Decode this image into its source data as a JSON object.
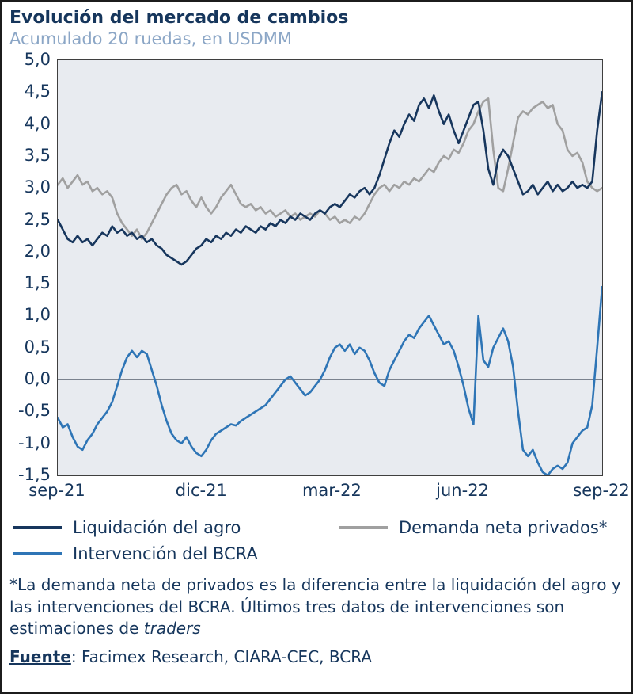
{
  "chart_data": {
    "type": "line",
    "title": "Evolución del mercado de cambios",
    "subtitle": "Acumulado 20 ruedas, en USDMM",
    "ylim": [
      -1.5,
      5.0
    ],
    "grid": false,
    "zero_line": true,
    "legend_position": "bottom",
    "plot_bg": "#e8ebf0",
    "y_ticks": [
      {
        "value": 5.0,
        "label": "5,0"
      },
      {
        "value": 4.5,
        "label": "4,5"
      },
      {
        "value": 4.0,
        "label": "4,0"
      },
      {
        "value": 3.5,
        "label": "3,5"
      },
      {
        "value": 3.0,
        "label": "3,0"
      },
      {
        "value": 2.5,
        "label": "2,5"
      },
      {
        "value": 2.0,
        "label": "2,0"
      },
      {
        "value": 1.5,
        "label": "1,5"
      },
      {
        "value": 1.0,
        "label": "1,0"
      },
      {
        "value": 0.5,
        "label": "0,5"
      },
      {
        "value": 0.0,
        "label": "0,0"
      },
      {
        "value": -0.5,
        "label": "-0,5"
      },
      {
        "value": -1.0,
        "label": "-1,0"
      },
      {
        "value": -1.5,
        "label": "-1,5"
      }
    ],
    "x_ticks": [
      {
        "label": "sep-21",
        "pos": 0.0
      },
      {
        "label": "dic-21",
        "pos": 0.265
      },
      {
        "label": "mar-22",
        "pos": 0.505
      },
      {
        "label": "jun-22",
        "pos": 0.745
      },
      {
        "label": "sep-22",
        "pos": 1.0
      }
    ],
    "series": [
      {
        "name": "Liquidación del agro",
        "color": "#17365d",
        "values": [
          2.5,
          2.35,
          2.2,
          2.15,
          2.25,
          2.15,
          2.2,
          2.1,
          2.2,
          2.3,
          2.25,
          2.4,
          2.3,
          2.35,
          2.25,
          2.3,
          2.2,
          2.25,
          2.15,
          2.2,
          2.1,
          2.05,
          1.95,
          1.9,
          1.85,
          1.8,
          1.85,
          1.95,
          2.05,
          2.1,
          2.2,
          2.15,
          2.25,
          2.2,
          2.3,
          2.25,
          2.35,
          2.3,
          2.4,
          2.35,
          2.3,
          2.4,
          2.35,
          2.45,
          2.4,
          2.5,
          2.45,
          2.55,
          2.5,
          2.6,
          2.55,
          2.5,
          2.6,
          2.65,
          2.6,
          2.7,
          2.75,
          2.7,
          2.8,
          2.9,
          2.85,
          2.95,
          3.0,
          2.9,
          3.0,
          3.2,
          3.45,
          3.7,
          3.9,
          3.8,
          4.0,
          4.15,
          4.05,
          4.3,
          4.4,
          4.25,
          4.45,
          4.2,
          4.0,
          4.15,
          3.9,
          3.7,
          3.9,
          4.1,
          4.3,
          4.35,
          3.9,
          3.3,
          3.05,
          3.45,
          3.6,
          3.5,
          3.3,
          3.1,
          2.9,
          2.95,
          3.05,
          2.9,
          3.0,
          3.1,
          2.95,
          3.05,
          2.95,
          3.0,
          3.1,
          3.0,
          3.05,
          3.0,
          3.1,
          3.9,
          4.5
        ]
      },
      {
        "name": "Demanda neta privados*",
        "color": "#a0a0a0",
        "values": [
          3.05,
          3.15,
          3.0,
          3.1,
          3.2,
          3.05,
          3.1,
          2.95,
          3.0,
          2.9,
          2.95,
          2.85,
          2.6,
          2.45,
          2.35,
          2.25,
          2.35,
          2.2,
          2.3,
          2.45,
          2.6,
          2.75,
          2.9,
          3.0,
          3.05,
          2.9,
          2.95,
          2.8,
          2.7,
          2.85,
          2.7,
          2.6,
          2.7,
          2.85,
          2.95,
          3.05,
          2.9,
          2.75,
          2.7,
          2.75,
          2.65,
          2.7,
          2.6,
          2.65,
          2.55,
          2.6,
          2.65,
          2.55,
          2.6,
          2.5,
          2.55,
          2.6,
          2.55,
          2.65,
          2.6,
          2.5,
          2.55,
          2.45,
          2.5,
          2.45,
          2.55,
          2.5,
          2.6,
          2.75,
          2.9,
          3.0,
          3.05,
          2.95,
          3.05,
          3.0,
          3.1,
          3.05,
          3.15,
          3.1,
          3.2,
          3.3,
          3.25,
          3.4,
          3.5,
          3.45,
          3.6,
          3.55,
          3.7,
          3.9,
          4.0,
          4.2,
          4.35,
          4.4,
          3.6,
          3.0,
          2.95,
          3.3,
          3.7,
          4.1,
          4.2,
          4.15,
          4.25,
          4.3,
          4.35,
          4.25,
          4.3,
          4.0,
          3.9,
          3.6,
          3.5,
          3.55,
          3.4,
          3.1,
          3.0,
          2.95,
          3.0
        ]
      },
      {
        "name": "Intervención del BCRA",
        "color": "#2e75b6",
        "values": [
          -0.6,
          -0.75,
          -0.7,
          -0.9,
          -1.05,
          -1.1,
          -0.95,
          -0.85,
          -0.7,
          -0.6,
          -0.5,
          -0.35,
          -0.1,
          0.15,
          0.35,
          0.45,
          0.35,
          0.45,
          0.4,
          0.15,
          -0.1,
          -0.4,
          -0.65,
          -0.85,
          -0.95,
          -1.0,
          -0.9,
          -1.05,
          -1.15,
          -1.2,
          -1.1,
          -0.95,
          -0.85,
          -0.8,
          -0.75,
          -0.7,
          -0.72,
          -0.65,
          -0.6,
          -0.55,
          -0.5,
          -0.45,
          -0.4,
          -0.3,
          -0.2,
          -0.1,
          0.0,
          0.05,
          -0.05,
          -0.15,
          -0.25,
          -0.2,
          -0.1,
          0.0,
          0.15,
          0.35,
          0.5,
          0.55,
          0.45,
          0.55,
          0.4,
          0.5,
          0.45,
          0.3,
          0.1,
          -0.05,
          -0.1,
          0.15,
          0.3,
          0.45,
          0.6,
          0.7,
          0.65,
          0.8,
          0.9,
          1.0,
          0.85,
          0.7,
          0.55,
          0.6,
          0.45,
          0.2,
          -0.1,
          -0.45,
          -0.7,
          1.0,
          0.3,
          0.2,
          0.5,
          0.65,
          0.8,
          0.6,
          0.2,
          -0.5,
          -1.1,
          -1.2,
          -1.1,
          -1.3,
          -1.45,
          -1.5,
          -1.4,
          -1.35,
          -1.4,
          -1.3,
          -1.0,
          -0.9,
          -0.8,
          -0.75,
          -0.4,
          0.5,
          1.45
        ]
      }
    ]
  },
  "colors": {
    "text_navy": "#16365c",
    "subtitle_blue": "#8ba6c6",
    "zero_line": "#55606e",
    "plot_border": "#3f3f3f"
  },
  "footnote": {
    "text": "*La demanda neta de privados es la diferencia entre la liquidación del agro y las intervenciones del BCRA. Últimos tres datos de intervenciones son estimaciones de ",
    "italic_text": "traders"
  },
  "source": {
    "label": "Fuente",
    "rest": ": Facimex Research, CIARA-CEC, BCRA"
  }
}
